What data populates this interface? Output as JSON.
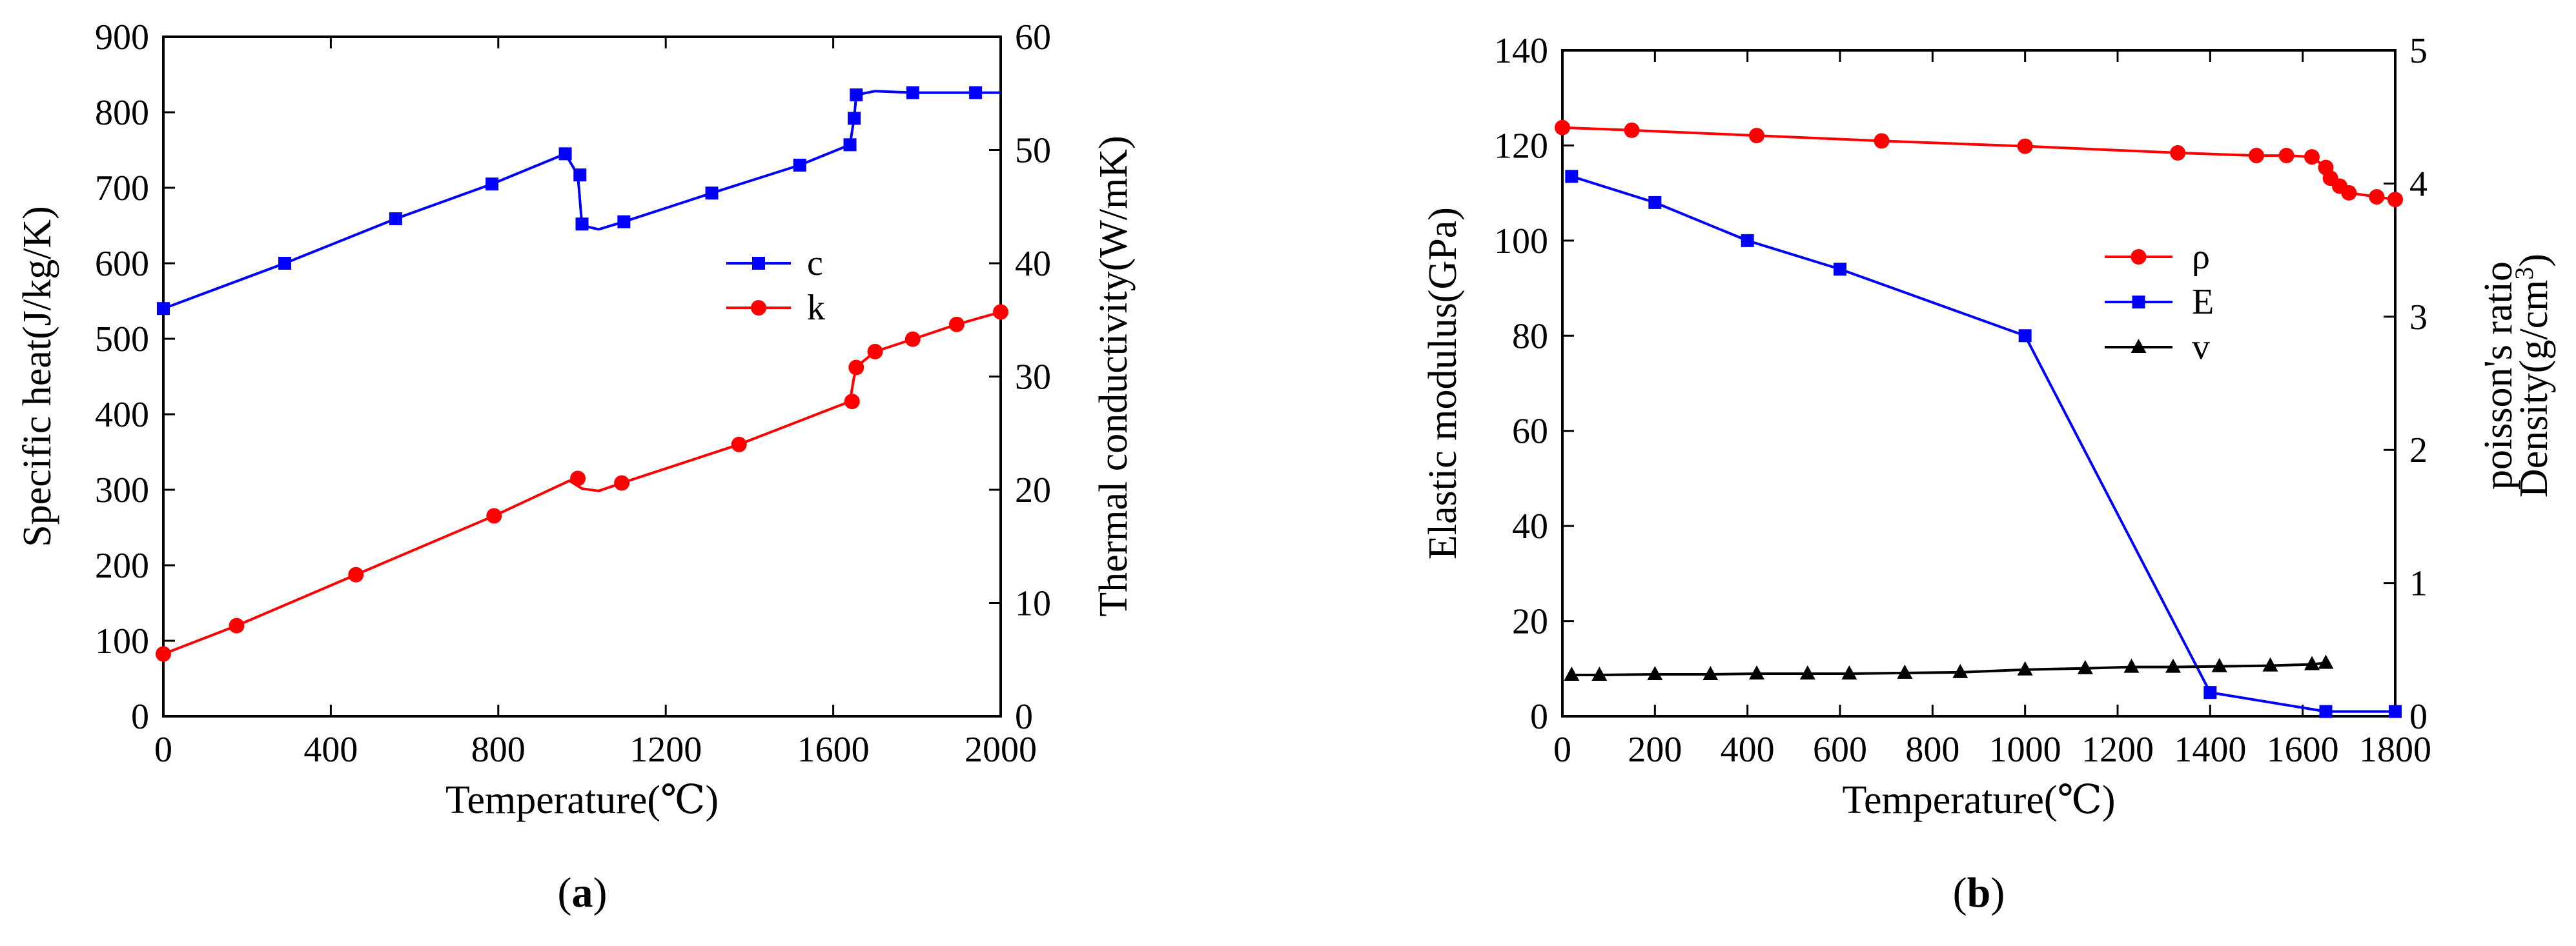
{
  "chart_data": [
    {
      "type": "line",
      "panel_label": "a",
      "xlabel": "Temperature(℃)",
      "ylabel": "Specific heat(J/kg/K)",
      "y2label": "Thermal conductivity(W/mK)",
      "xlim": [
        0,
        2000
      ],
      "xticks": [
        0,
        400,
        800,
        1200,
        1600,
        2000
      ],
      "ylim": [
        0,
        900
      ],
      "yticks": [
        0,
        100,
        200,
        300,
        400,
        500,
        600,
        700,
        800,
        900
      ],
      "y2lim": [
        0,
        60
      ],
      "y2ticks": [
        0,
        10,
        20,
        30,
        40,
        50,
        60
      ],
      "legend_position": "right-middle",
      "series": [
        {
          "name": "c",
          "axis": "left",
          "color": "#0000ff",
          "marker": "square",
          "x": [
            0,
            290,
            555,
            785,
            960,
            995,
            1000,
            1100,
            1310,
            1520,
            1640,
            1650,
            1655,
            1790,
            1940
          ],
          "y": [
            540,
            600,
            659,
            705,
            745,
            717,
            652,
            655,
            693,
            730,
            757,
            792,
            823,
            826,
            826
          ],
          "curve_x": [
            0,
            290,
            555,
            785,
            960,
            990,
            1000,
            1040,
            1100,
            1310,
            1520,
            1640,
            1650,
            1655,
            1700,
            1790,
            1940,
            2000
          ],
          "curve_y": [
            540,
            600,
            659,
            705,
            745,
            717,
            650,
            645,
            655,
            693,
            730,
            757,
            792,
            823,
            828,
            826,
            826,
            826
          ]
        },
        {
          "name": "k",
          "axis": "right",
          "color": "#ff0000",
          "marker": "circle",
          "x": [
            0,
            175,
            460,
            790,
            990,
            1095,
            1375,
            1645,
            1655,
            1700,
            1790,
            1895,
            2000
          ],
          "y": [
            5.5,
            8.0,
            12.5,
            17.7,
            21.0,
            20.6,
            24.0,
            27.8,
            30.8,
            32.2,
            33.3,
            34.6,
            35.7
          ],
          "curve_x": [
            0,
            175,
            460,
            790,
            970,
            1000,
            1040,
            1095,
            1375,
            1640,
            1650,
            1660,
            1700,
            1790,
            1895,
            2000
          ],
          "curve_y": [
            5.5,
            8.0,
            12.5,
            17.7,
            20.8,
            20.1,
            19.9,
            20.6,
            24.0,
            27.8,
            30.0,
            31.0,
            32.2,
            33.3,
            34.6,
            35.7
          ]
        }
      ]
    },
    {
      "type": "line",
      "panel_label": "b",
      "xlabel": "Temperature(℃)",
      "ylabel": "Elastic modulus(GPa)",
      "y2label_line1": "poisson's ratio",
      "y2label_line2": "Density(g/cm",
      "y2label_sup": "3",
      "y2label_close": ")",
      "xlim": [
        0,
        1800
      ],
      "xticks": [
        0,
        200,
        400,
        600,
        800,
        1000,
        1200,
        1400,
        1600,
        1800
      ],
      "ylim": [
        0,
        140
      ],
      "yticks": [
        0,
        20,
        40,
        60,
        80,
        100,
        120,
        140
      ],
      "y2lim": [
        0,
        5
      ],
      "y2ticks": [
        0,
        1,
        2,
        3,
        4,
        5
      ],
      "legend_position": "right-upper",
      "series": [
        {
          "name": "ρ",
          "axis": "right",
          "color": "#ff0000",
          "marker": "circle",
          "x": [
            0,
            150,
            420,
            690,
            1000,
            1330,
            1500,
            1565,
            1620,
            1650,
            1660,
            1680,
            1700,
            1760,
            1800
          ],
          "y": [
            4.42,
            4.4,
            4.36,
            4.32,
            4.28,
            4.23,
            4.21,
            4.21,
            4.2,
            4.12,
            4.04,
            3.98,
            3.93,
            3.9,
            3.88
          ]
        },
        {
          "name": "E",
          "axis": "left",
          "color": "#0000ff",
          "marker": "square",
          "x": [
            20,
            200,
            400,
            600,
            1000,
            1400,
            1650,
            1800
          ],
          "y": [
            113.5,
            108,
            100,
            94,
            80,
            5,
            1,
            1
          ]
        },
        {
          "name": "v",
          "axis": "right",
          "color": "#000000",
          "marker": "triangle",
          "x": [
            20,
            80,
            200,
            320,
            420,
            530,
            620,
            740,
            860,
            1000,
            1130,
            1230,
            1320,
            1420,
            1530,
            1620,
            1650
          ],
          "y": [
            0.31,
            0.31,
            0.315,
            0.315,
            0.32,
            0.32,
            0.32,
            0.325,
            0.33,
            0.35,
            0.36,
            0.37,
            0.37,
            0.375,
            0.38,
            0.39,
            0.4
          ]
        }
      ]
    }
  ]
}
